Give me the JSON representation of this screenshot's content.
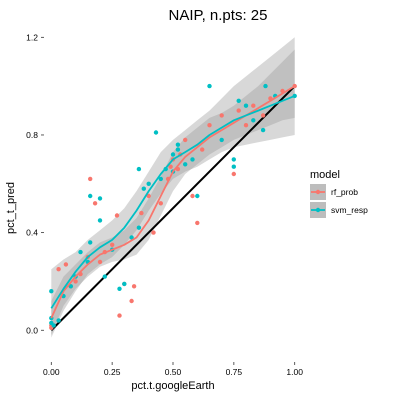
{
  "chart_data": {
    "type": "scatter",
    "title": "NAIP, n.pts: 25",
    "xlabel": "pct.t.googleEarth",
    "ylabel": "pct_t_pred",
    "xlim": [
      -0.03,
      1.03
    ],
    "ylim": [
      -0.13,
      1.23
    ],
    "x_ticks": [
      "0.00",
      "0.25",
      "0.50",
      "0.75",
      "1.00"
    ],
    "y_ticks": [
      "0.0",
      "0.4",
      "0.8",
      "1.2"
    ],
    "grid": false,
    "legend": {
      "title": "model",
      "position": "right"
    },
    "reference_line": {
      "slope": 1,
      "intercept": 0,
      "color": "#000000"
    },
    "series": [
      {
        "name": "rf_prob",
        "color": "#F8766D",
        "points": [
          [
            0.0,
            0.02
          ],
          [
            0.0,
            0.01
          ],
          [
            0.03,
            0.25
          ],
          [
            0.06,
            0.27
          ],
          [
            0.08,
            0.18
          ],
          [
            0.1,
            0.2
          ],
          [
            0.12,
            0.23
          ],
          [
            0.15,
            0.3
          ],
          [
            0.16,
            0.62
          ],
          [
            0.18,
            0.52
          ],
          [
            0.2,
            0.28
          ],
          [
            0.22,
            0.32
          ],
          [
            0.25,
            0.35
          ],
          [
            0.27,
            0.47
          ],
          [
            0.28,
            0.06
          ],
          [
            0.3,
            0.19
          ],
          [
            0.33,
            0.12
          ],
          [
            0.34,
            0.18
          ],
          [
            0.37,
            0.48
          ],
          [
            0.4,
            0.55
          ],
          [
            0.42,
            0.4
          ],
          [
            0.45,
            0.52
          ],
          [
            0.48,
            0.62
          ],
          [
            0.49,
            0.67
          ],
          [
            0.5,
            0.7
          ],
          [
            0.52,
            0.66
          ],
          [
            0.53,
            0.72
          ],
          [
            0.55,
            0.78
          ],
          [
            0.58,
            0.55
          ],
          [
            0.6,
            0.44
          ],
          [
            0.62,
            0.74
          ],
          [
            0.65,
            0.84
          ],
          [
            0.7,
            0.88
          ],
          [
            0.75,
            0.64
          ],
          [
            0.77,
            0.9
          ],
          [
            0.8,
            0.84
          ],
          [
            0.83,
            0.92
          ],
          [
            0.87,
            0.88
          ],
          [
            0.9,
            0.95
          ],
          [
            0.95,
            0.98
          ],
          [
            1.0,
            1.0
          ]
        ],
        "smooth": [
          [
            0.0,
            0.05
          ],
          [
            0.05,
            0.16
          ],
          [
            0.1,
            0.22
          ],
          [
            0.15,
            0.27
          ],
          [
            0.2,
            0.31
          ],
          [
            0.25,
            0.33
          ],
          [
            0.3,
            0.35
          ],
          [
            0.35,
            0.38
          ],
          [
            0.4,
            0.45
          ],
          [
            0.45,
            0.55
          ],
          [
            0.5,
            0.65
          ],
          [
            0.55,
            0.71
          ],
          [
            0.6,
            0.75
          ],
          [
            0.65,
            0.79
          ],
          [
            0.7,
            0.82
          ],
          [
            0.75,
            0.85
          ],
          [
            0.8,
            0.88
          ],
          [
            0.85,
            0.91
          ],
          [
            0.9,
            0.94
          ],
          [
            0.95,
            0.97
          ],
          [
            1.0,
            1.0
          ]
        ],
        "band": [
          [
            0.0,
            -0.02,
            0.12
          ],
          [
            0.05,
            0.1,
            0.22
          ],
          [
            0.1,
            0.17,
            0.27
          ],
          [
            0.15,
            0.22,
            0.32
          ],
          [
            0.2,
            0.26,
            0.36
          ],
          [
            0.25,
            0.28,
            0.38
          ],
          [
            0.3,
            0.29,
            0.41
          ],
          [
            0.35,
            0.31,
            0.46
          ],
          [
            0.4,
            0.37,
            0.54
          ],
          [
            0.45,
            0.47,
            0.63
          ],
          [
            0.5,
            0.57,
            0.73
          ],
          [
            0.55,
            0.64,
            0.79
          ],
          [
            0.6,
            0.68,
            0.83
          ],
          [
            0.65,
            0.72,
            0.87
          ],
          [
            0.7,
            0.75,
            0.89
          ],
          [
            0.75,
            0.78,
            0.92
          ],
          [
            0.8,
            0.8,
            0.96
          ],
          [
            0.85,
            0.82,
            1.0
          ],
          [
            0.9,
            0.84,
            1.05
          ],
          [
            0.95,
            0.86,
            1.1
          ],
          [
            1.0,
            0.87,
            1.15
          ]
        ]
      },
      {
        "name": "svm_resp",
        "color": "#00BFC4",
        "points": [
          [
            0.0,
            0.16
          ],
          [
            0.0,
            0.05
          ],
          [
            0.0,
            0.03
          ],
          [
            0.01,
            0.02
          ],
          [
            0.03,
            0.04
          ],
          [
            0.05,
            0.14
          ],
          [
            0.08,
            0.18
          ],
          [
            0.1,
            0.22
          ],
          [
            0.12,
            0.32
          ],
          [
            0.15,
            0.28
          ],
          [
            0.16,
            0.36
          ],
          [
            0.16,
            0.55
          ],
          [
            0.2,
            0.45
          ],
          [
            0.2,
            0.54
          ],
          [
            0.22,
            0.22
          ],
          [
            0.25,
            0.33
          ],
          [
            0.28,
            0.17
          ],
          [
            0.3,
            0.19
          ],
          [
            0.33,
            0.38
          ],
          [
            0.36,
            0.42
          ],
          [
            0.36,
            0.66
          ],
          [
            0.38,
            0.58
          ],
          [
            0.4,
            0.6
          ],
          [
            0.43,
            0.81
          ],
          [
            0.45,
            0.62
          ],
          [
            0.47,
            0.66
          ],
          [
            0.5,
            0.65
          ],
          [
            0.5,
            0.72
          ],
          [
            0.52,
            0.76
          ],
          [
            0.52,
            0.74
          ],
          [
            0.55,
            0.68
          ],
          [
            0.58,
            0.7
          ],
          [
            0.6,
            0.55
          ],
          [
            0.65,
            1.0
          ],
          [
            0.7,
            0.78
          ],
          [
            0.75,
            0.7
          ],
          [
            0.75,
            0.67
          ],
          [
            0.77,
            0.94
          ],
          [
            0.8,
            0.92
          ],
          [
            0.83,
            0.86
          ],
          [
            0.87,
            0.82
          ],
          [
            0.88,
            1.0
          ],
          [
            0.92,
            0.96
          ],
          [
            1.0,
            0.96
          ]
        ],
        "smooth": [
          [
            0.0,
            0.09
          ],
          [
            0.05,
            0.17
          ],
          [
            0.1,
            0.24
          ],
          [
            0.15,
            0.3
          ],
          [
            0.2,
            0.34
          ],
          [
            0.25,
            0.37
          ],
          [
            0.3,
            0.42
          ],
          [
            0.35,
            0.49
          ],
          [
            0.4,
            0.57
          ],
          [
            0.45,
            0.64
          ],
          [
            0.5,
            0.7
          ],
          [
            0.55,
            0.73
          ],
          [
            0.6,
            0.76
          ],
          [
            0.65,
            0.8
          ],
          [
            0.7,
            0.83
          ],
          [
            0.75,
            0.86
          ],
          [
            0.8,
            0.88
          ],
          [
            0.85,
            0.9
          ],
          [
            0.9,
            0.92
          ],
          [
            0.95,
            0.94
          ],
          [
            1.0,
            0.96
          ]
        ],
        "band": [
          [
            0.0,
            -0.03,
            0.25
          ],
          [
            0.05,
            0.08,
            0.29
          ],
          [
            0.1,
            0.16,
            0.32
          ],
          [
            0.15,
            0.23,
            0.37
          ],
          [
            0.2,
            0.27,
            0.41
          ],
          [
            0.25,
            0.3,
            0.45
          ],
          [
            0.3,
            0.35,
            0.5
          ],
          [
            0.35,
            0.41,
            0.57
          ],
          [
            0.4,
            0.49,
            0.65
          ],
          [
            0.45,
            0.56,
            0.73
          ],
          [
            0.5,
            0.62,
            0.78
          ],
          [
            0.55,
            0.65,
            0.82
          ],
          [
            0.6,
            0.67,
            0.86
          ],
          [
            0.65,
            0.7,
            0.9
          ],
          [
            0.7,
            0.73,
            0.95
          ],
          [
            0.75,
            0.75,
            1.0
          ],
          [
            0.8,
            0.76,
            1.04
          ],
          [
            0.85,
            0.77,
            1.08
          ],
          [
            0.9,
            0.78,
            1.12
          ],
          [
            0.95,
            0.79,
            1.16
          ],
          [
            1.0,
            0.8,
            1.2
          ]
        ]
      }
    ]
  }
}
